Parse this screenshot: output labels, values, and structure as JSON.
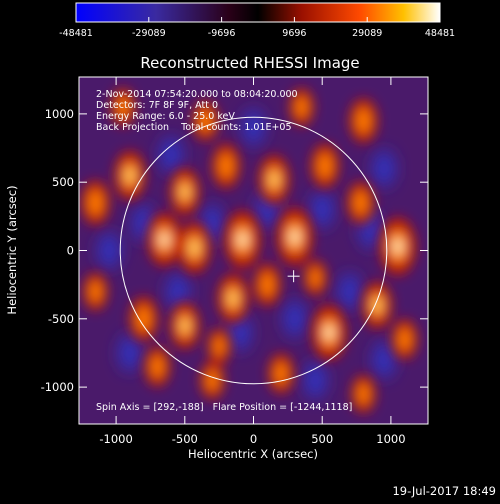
{
  "chart_data": {
    "type": "heatmap",
    "title": "Reconstructed RHESSI Image",
    "xlabel": "Heliocentric X (arcsec)",
    "ylabel": "Heliocentric Y (arcsec)",
    "xlim": [
      -1270,
      1270
    ],
    "ylim": [
      -1270,
      1270
    ],
    "xticks": [
      -1000,
      -500,
      0,
      500,
      1000
    ],
    "yticks": [
      -1000,
      -500,
      0,
      500,
      1000
    ],
    "colorbar": {
      "ticks": [
        -48481,
        -29089,
        -9696,
        9696,
        29089,
        48481
      ],
      "range": [
        -48481,
        48481
      ]
    },
    "annotations": [
      "2-Nov-2014 07:54:20.000 to 08:04:20.000",
      "Detectors: 7F 8F 9F, Att 0",
      "Energy Range: 6.0 - 25.0 keV",
      "Back Projection    Total counts: 1.01E+05"
    ],
    "footer_note": "Spin Axis = [292,-188]   Flare Position = [-1244,1118]",
    "solar_limb_radius": 970,
    "marker": [
      292,
      -188
    ],
    "peaks": [
      {
        "x": -1150,
        "y": 350,
        "v": 0.7
      },
      {
        "x": -900,
        "y": 550,
        "v": 0.8
      },
      {
        "x": -650,
        "y": 80,
        "v": 0.9
      },
      {
        "x": -430,
        "y": 20,
        "v": 0.85
      },
      {
        "x": -80,
        "y": 80,
        "v": 1.0
      },
      {
        "x": 300,
        "y": 100,
        "v": 1.0
      },
      {
        "x": 1050,
        "y": 30,
        "v": 1.0
      },
      {
        "x": -500,
        "y": 430,
        "v": 0.75
      },
      {
        "x": -200,
        "y": 620,
        "v": 0.7
      },
      {
        "x": 150,
        "y": 520,
        "v": 0.8
      },
      {
        "x": 520,
        "y": 620,
        "v": 0.7
      },
      {
        "x": 780,
        "y": 350,
        "v": 0.65
      },
      {
        "x": 800,
        "y": 950,
        "v": 0.7
      },
      {
        "x": 350,
        "y": 1050,
        "v": 0.55
      },
      {
        "x": -350,
        "y": 950,
        "v": 0.6
      },
      {
        "x": -950,
        "y": 1050,
        "v": 0.55
      },
      {
        "x": -1150,
        "y": -300,
        "v": 0.55
      },
      {
        "x": -800,
        "y": -500,
        "v": 0.7
      },
      {
        "x": -500,
        "y": -550,
        "v": 0.75
      },
      {
        "x": -150,
        "y": -350,
        "v": 0.8
      },
      {
        "x": 100,
        "y": -250,
        "v": 0.65
      },
      {
        "x": 550,
        "y": -600,
        "v": 0.95
      },
      {
        "x": 900,
        "y": -400,
        "v": 0.75
      },
      {
        "x": 1100,
        "y": -650,
        "v": 0.6
      },
      {
        "x": -700,
        "y": -850,
        "v": 0.6
      },
      {
        "x": -300,
        "y": -950,
        "v": 0.55
      },
      {
        "x": 200,
        "y": -900,
        "v": 0.6
      },
      {
        "x": 800,
        "y": -1050,
        "v": 0.55
      },
      {
        "x": -250,
        "y": -700,
        "v": 0.5
      },
      {
        "x": 450,
        "y": -200,
        "v": 0.5
      }
    ],
    "troughs": [
      {
        "x": -1050,
        "y": 0
      },
      {
        "x": -800,
        "y": 200
      },
      {
        "x": -600,
        "y": 700
      },
      {
        "x": -300,
        "y": 200
      },
      {
        "x": 100,
        "y": 300
      },
      {
        "x": 500,
        "y": 300
      },
      {
        "x": 850,
        "y": 150
      },
      {
        "x": 700,
        "y": -300
      },
      {
        "x": 300,
        "y": -500
      },
      {
        "x": -100,
        "y": -600
      },
      {
        "x": -550,
        "y": -300
      },
      {
        "x": 950,
        "y": -800
      },
      {
        "x": 950,
        "y": 600
      },
      {
        "x": 0,
        "y": 900
      },
      {
        "x": -900,
        "y": -750
      },
      {
        "x": 450,
        "y": -950
      }
    ]
  },
  "timestamp": "19-Jul-2017 18:49"
}
